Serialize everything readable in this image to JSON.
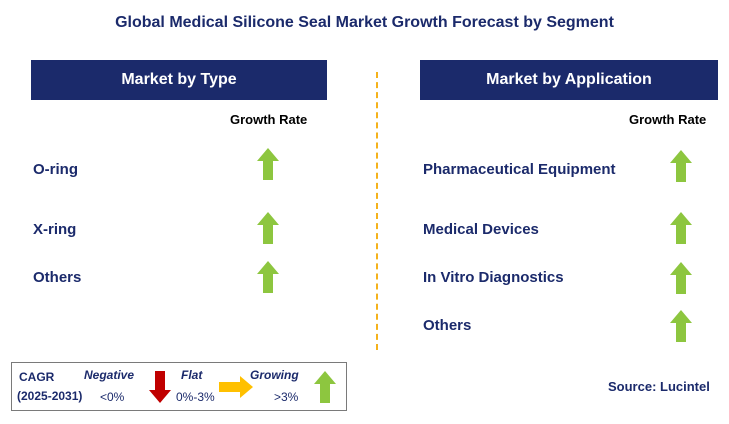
{
  "title": "Global Medical Silicone Seal Market Growth Forecast by Segment",
  "left_panel": {
    "header": "Market by Type",
    "growth_label": "Growth Rate",
    "items": [
      {
        "label": "O-ring",
        "trend": "growing"
      },
      {
        "label": "X-ring",
        "trend": "growing"
      },
      {
        "label": "Others",
        "trend": "growing"
      }
    ]
  },
  "right_panel": {
    "header": "Market by Application",
    "growth_label": "Growth Rate",
    "items": [
      {
        "label": "Pharmaceutical Equipment",
        "trend": "growing"
      },
      {
        "label": "Medical Devices",
        "trend": "growing"
      },
      {
        "label": "In Vitro Diagnostics",
        "trend": "growing"
      },
      {
        "label": "Others",
        "trend": "growing"
      }
    ]
  },
  "legend": {
    "cagr_label": "CAGR",
    "period": "(2025-2031)",
    "negative_label": "Negative",
    "negative_value": "<0%",
    "flat_label": "Flat",
    "flat_value": "0%-3%",
    "growing_label": "Growing",
    "growing_value": ">3%"
  },
  "source": "Source: Lucintel",
  "colors": {
    "navy": "#1b2a6b",
    "green_arrow": "#8dc63f",
    "red_arrow": "#c00000",
    "orange_arrow": "#ffc000",
    "divider": "#f5b21b"
  }
}
